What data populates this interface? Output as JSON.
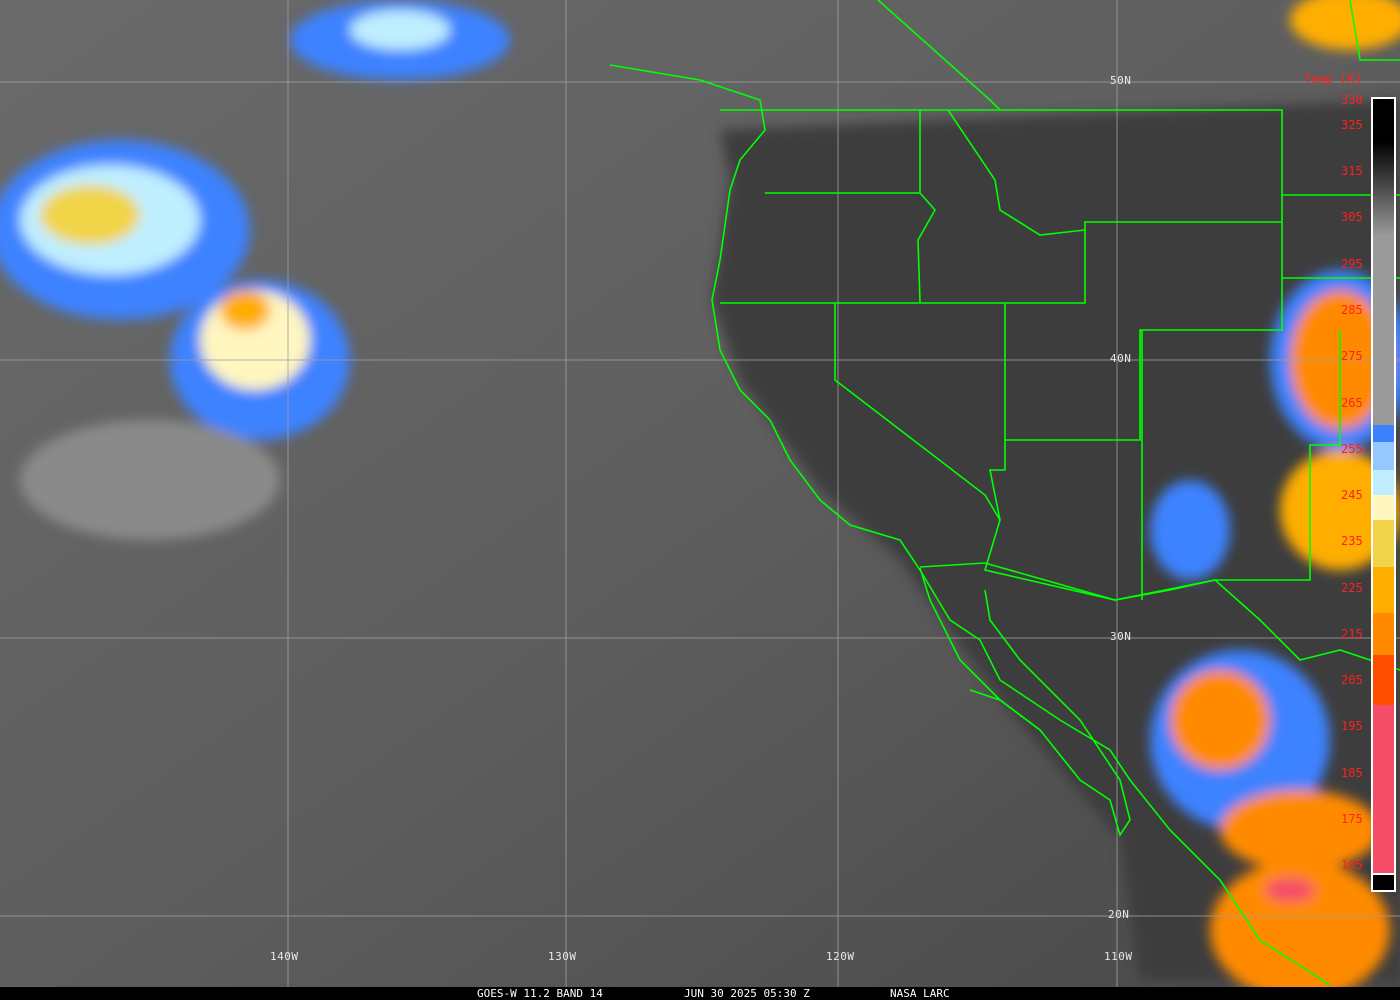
{
  "caption": {
    "satellite": "GOES-W 11.2 BAND 14",
    "datetime": "JUN 30 2025 05:30 Z",
    "source": "NASA LARC"
  },
  "grid": {
    "lon_labels": [
      "140W",
      "130W",
      "120W",
      "110W"
    ],
    "lat_labels": [
      "50N",
      "40N",
      "30N",
      "20N"
    ]
  },
  "colorbar": {
    "title": "Temp [K]",
    "ticks": [
      "330",
      "325",
      "315",
      "305",
      "295",
      "285",
      "275",
      "265",
      "255",
      "245",
      "235",
      "225",
      "215",
      "205",
      "195",
      "185",
      "175",
      "165"
    ],
    "colors": {
      "cold_pink": "#f44d68",
      "orange_red": "#ff4e00",
      "orange": "#ff8a00",
      "gold": "#ffae00",
      "yellow": "#f2d44a",
      "pale_yellow": "#fff6c0",
      "light_cyan": "#bfeeff",
      "light_blue": "#96c8ff",
      "blue": "#3c82ff"
    }
  },
  "map_colors": {
    "boundaries": "#00ff00",
    "grid": "#a0a0a0"
  }
}
